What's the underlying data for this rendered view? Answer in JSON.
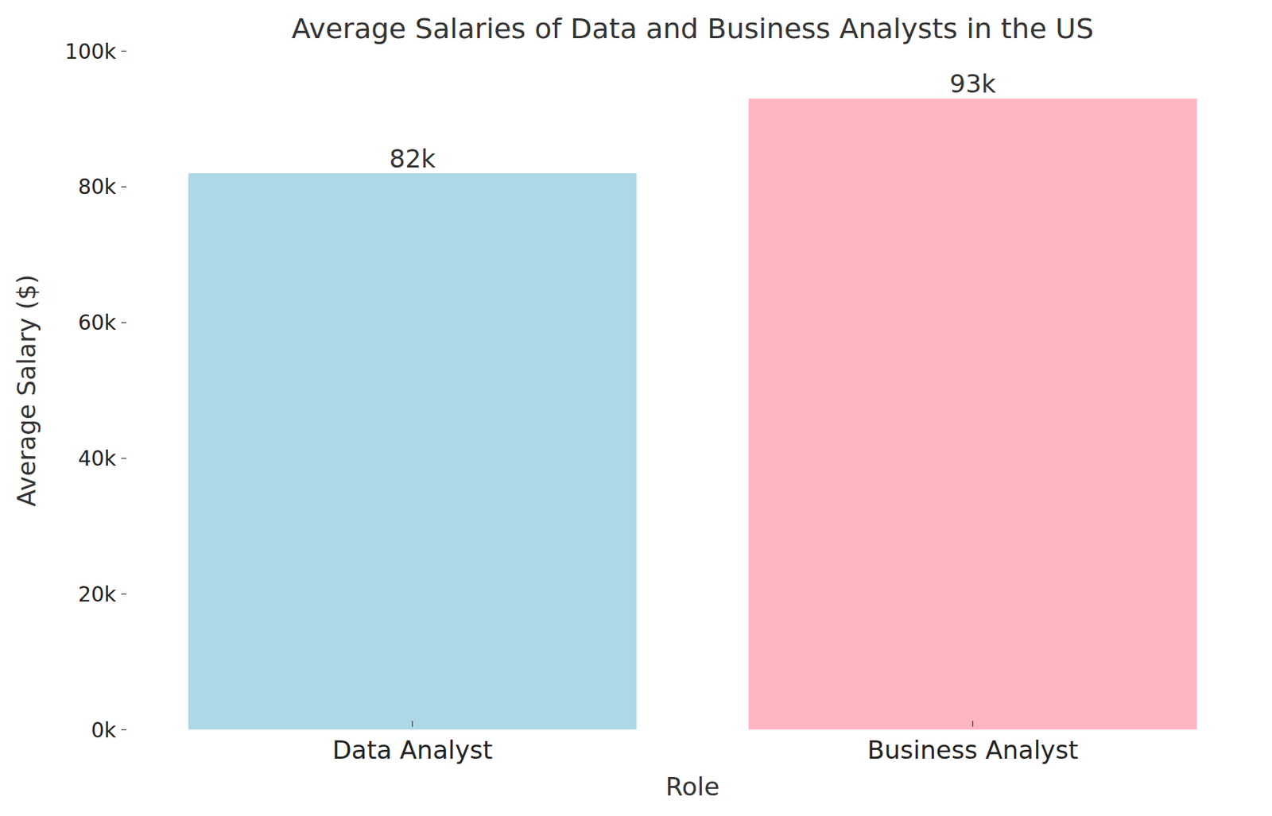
{
  "chart_data": {
    "type": "bar",
    "title": "Average Salaries of Data and Business Analysts in the US",
    "x_label": "Role",
    "y_label": "Average Salary ($)",
    "categories": [
      "Data Analyst",
      "Business Analyst"
    ],
    "values": [
      82000,
      93000
    ],
    "value_labels": [
      "82k",
      "93k"
    ],
    "colors": [
      "#add8e6",
      "#ffb6c1"
    ],
    "ylim": [
      0,
      100000
    ],
    "yticks": [
      {
        "value": 0,
        "label": "0k"
      },
      {
        "value": 20000,
        "label": "20k"
      },
      {
        "value": 40000,
        "label": "40k"
      },
      {
        "value": 60000,
        "label": "60k"
      },
      {
        "value": 80000,
        "label": "80k"
      },
      {
        "value": 100000,
        "label": "100k"
      }
    ],
    "grid": false,
    "data_labels": true
  }
}
